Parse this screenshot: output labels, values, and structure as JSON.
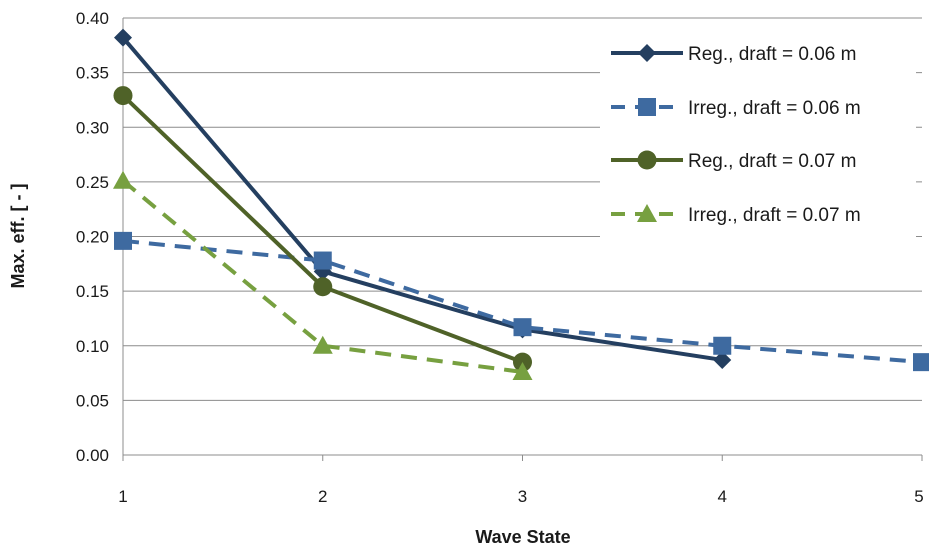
{
  "chart_data": {
    "type": "line",
    "title": "",
    "xlabel": "Wave State",
    "ylabel": "Max. eff. [ - ]",
    "x_ticks": [
      "1",
      "2",
      "3",
      "4",
      "5"
    ],
    "y_ticks": [
      "0.00",
      "0.05",
      "0.10",
      "0.15",
      "0.20",
      "0.25",
      "0.30",
      "0.35",
      "0.40"
    ],
    "xlim": [
      1,
      5
    ],
    "ylim": [
      0,
      0.4
    ],
    "grid": "horizontal",
    "legend_position": "top-right",
    "series": [
      {
        "name": "Reg., draft = 0.06 m",
        "color": "#243F60",
        "marker": "diamond",
        "dash": "solid",
        "x": [
          1,
          2,
          3,
          4
        ],
        "y": [
          0.382,
          0.168,
          0.115,
          0.087
        ]
      },
      {
        "name": "Irreg., draft = 0.06 m",
        "color": "#3E6AA0",
        "marker": "square",
        "dash": "dashed",
        "x": [
          1,
          2,
          3,
          4,
          5
        ],
        "y": [
          0.196,
          0.178,
          0.117,
          0.1,
          0.085
        ]
      },
      {
        "name": "Reg., draft = 0.07 m",
        "color": "#4F6228",
        "marker": "circle",
        "dash": "solid",
        "x": [
          1,
          2,
          3
        ],
        "y": [
          0.329,
          0.154,
          0.085
        ]
      },
      {
        "name": "Irreg., draft = 0.07 m",
        "color": "#77A040",
        "marker": "triangle",
        "dash": "dashed",
        "x": [
          1,
          2,
          3
        ],
        "y": [
          0.251,
          0.1,
          0.076
        ]
      }
    ]
  }
}
